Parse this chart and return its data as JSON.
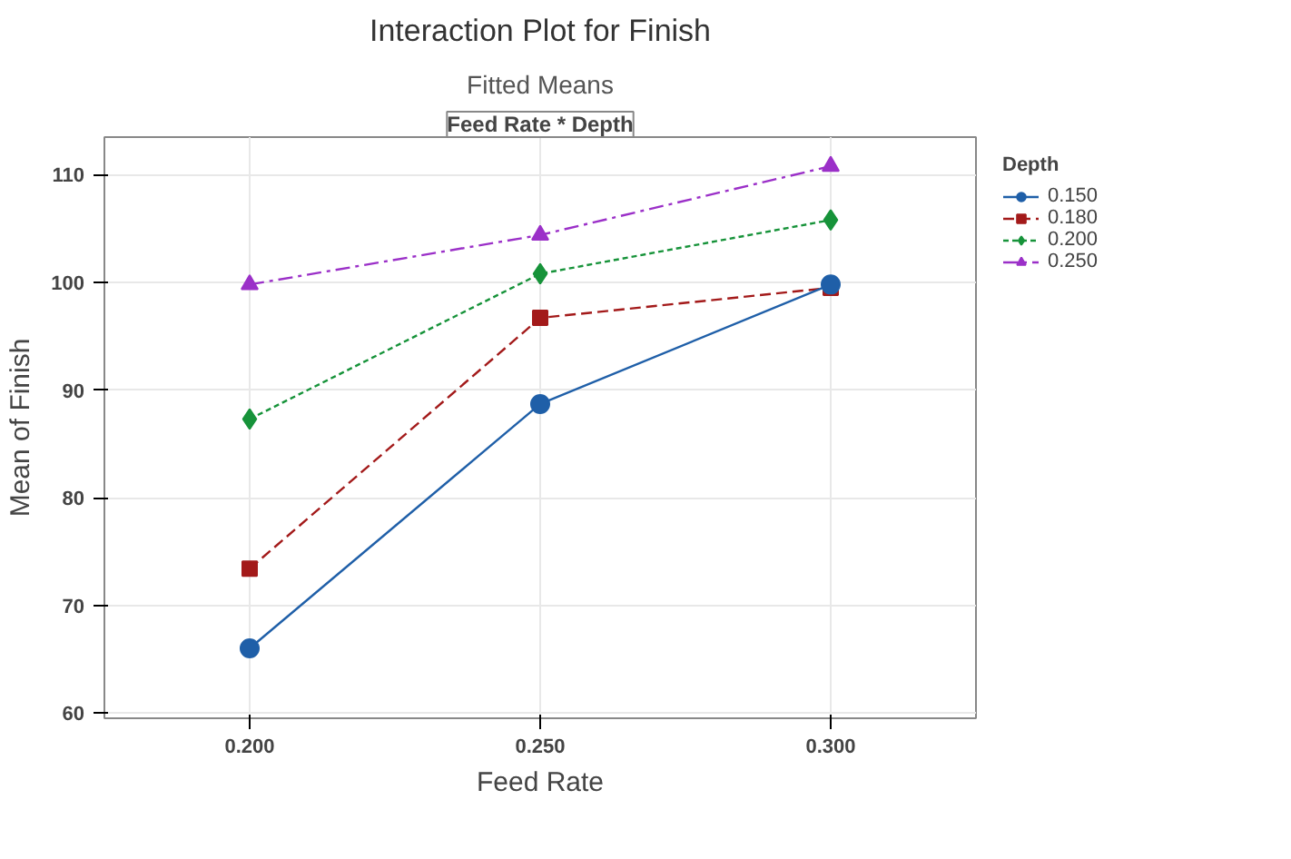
{
  "chart_data": {
    "type": "line",
    "title": "Interaction Plot for Finish",
    "subtitle": "Fitted Means",
    "annotations": [
      "Feed Rate * Depth"
    ],
    "xlabel": "Feed Rate",
    "ylabel": "Mean of Finish",
    "legend_title": "Depth",
    "x": [
      0.2,
      0.25,
      0.3
    ],
    "xlim": [
      0.175,
      0.325
    ],
    "xticks": [
      {
        "value": 0.2,
        "label": "0.200"
      },
      {
        "value": 0.25,
        "label": "0.250"
      },
      {
        "value": 0.3,
        "label": "0.300"
      }
    ],
    "ylim": [
      59.5,
      113.5
    ],
    "yticks": [
      60,
      70,
      80,
      90,
      100,
      110
    ],
    "grid": true,
    "legend": "top right",
    "series": [
      {
        "name": "0.150",
        "color": "#1f5fa8",
        "values": [
          66.0,
          88.7,
          99.8
        ],
        "marker": "circle",
        "line_style": "solid"
      },
      {
        "name": "0.180",
        "color": "#a31a1a",
        "values": [
          73.4,
          96.7,
          99.5
        ],
        "marker": "square",
        "line_style": "dashed"
      },
      {
        "name": "0.200",
        "color": "#17933a",
        "values": [
          87.3,
          100.8,
          105.8
        ],
        "marker": "diamond",
        "line_style": "dotted"
      },
      {
        "name": "0.250",
        "color": "#9b30c8",
        "values": [
          99.8,
          104.4,
          110.8
        ],
        "marker": "triangle",
        "line_style": "dashed"
      }
    ]
  }
}
